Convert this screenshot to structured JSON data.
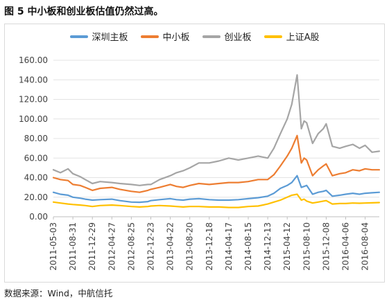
{
  "figure": {
    "title": "图 5  中小板和创业板估值仍然过高。",
    "source": "数据来源：Wind，中航信托"
  },
  "chart_data": {
    "type": "line",
    "title": "",
    "xlabel": "",
    "ylabel": "",
    "ylim": [
      0,
      160
    ],
    "yticks": [
      "0.00",
      "20.00",
      "40.00",
      "60.00",
      "80.00",
      "100.00",
      "120.00",
      "140.00",
      "160.00"
    ],
    "xtick_labels": [
      "2011-05-03",
      "2011-08-31",
      "2011-12-29",
      "2012-04-27",
      "2012-08-25",
      "2012-12-23",
      "2013-04-22",
      "2013-08-20",
      "2013-12-18",
      "2014-04-17",
      "2014-08-15",
      "2014-12-13",
      "2015-04-12",
      "2015-08-10",
      "2015-12-08",
      "2016-04-06",
      "2016-08-04"
    ],
    "grid": "horizontal",
    "legend_position": "top",
    "x": [
      "2011-05-03",
      "2011-06-15",
      "2011-08-01",
      "2011-08-31",
      "2011-10-15",
      "2011-11-15",
      "2011-12-29",
      "2012-02-15",
      "2012-04-27",
      "2012-06-15",
      "2012-08-25",
      "2012-10-15",
      "2012-12-05",
      "2012-12-23",
      "2013-02-15",
      "2013-04-22",
      "2013-05-30",
      "2013-07-10",
      "2013-08-20",
      "2013-10-15",
      "2013-12-18",
      "2014-02-15",
      "2014-04-17",
      "2014-06-15",
      "2014-08-15",
      "2014-10-15",
      "2014-12-13",
      "2015-01-20",
      "2015-03-01",
      "2015-04-12",
      "2015-05-10",
      "2015-06-12",
      "2015-07-08",
      "2015-07-25",
      "2015-08-10",
      "2015-09-15",
      "2015-10-20",
      "2015-11-20",
      "2015-12-08",
      "2016-01-15",
      "2016-02-29",
      "2016-04-06",
      "2016-05-20",
      "2016-06-30",
      "2016-08-04",
      "2016-09-15",
      "2016-10-30"
    ],
    "series": [
      {
        "name": "深圳主板",
        "color": "#5b9bd5",
        "values": [
          25,
          23,
          22,
          20,
          19,
          18,
          17,
          17.5,
          18,
          16.5,
          15,
          14.8,
          15.5,
          16.5,
          17.5,
          18.5,
          17.5,
          17,
          18,
          18.5,
          17.5,
          17,
          17,
          17.5,
          18.5,
          19.5,
          21,
          24,
          29,
          32,
          35,
          42,
          30,
          31,
          32,
          23,
          25,
          26,
          27,
          21,
          22,
          23,
          24,
          23,
          24,
          24.5,
          25
        ]
      },
      {
        "name": "中小板",
        "color": "#ed7d31",
        "values": [
          40,
          38,
          37,
          33,
          32,
          30,
          27,
          29,
          30,
          28,
          26,
          25,
          27,
          28,
          30,
          33,
          31,
          30,
          32,
          34,
          33,
          34,
          35,
          35,
          36,
          38,
          38,
          43,
          52,
          62,
          70,
          83,
          55,
          60,
          58,
          42,
          48,
          52,
          54,
          42,
          44,
          45,
          48,
          47,
          49,
          48,
          48
        ]
      },
      {
        "name": "创业板",
        "color": "#a5a5a5",
        "values": [
          48,
          45,
          49,
          44,
          41,
          38,
          34,
          36,
          35,
          34,
          33,
          32,
          33,
          33,
          38,
          42,
          45,
          47,
          50,
          55,
          55,
          57,
          60,
          58,
          60,
          62,
          60,
          70,
          85,
          100,
          115,
          145,
          90,
          98,
          96,
          75,
          85,
          90,
          95,
          72,
          70,
          72,
          74,
          70,
          73,
          66,
          67
        ]
      },
      {
        "name": "上证A股",
        "color": "#ffc000",
        "values": [
          15,
          14,
          13,
          12.5,
          12,
          11.5,
          10.5,
          11.5,
          12,
          11.5,
          10.5,
          10,
          10.5,
          11,
          11.5,
          11,
          10.5,
          10,
          10.5,
          10.5,
          10,
          10,
          9.5,
          9.5,
          10.5,
          11,
          13,
          15,
          17,
          20,
          22,
          23,
          17,
          18,
          16,
          14,
          15,
          16,
          16.5,
          13,
          13.5,
          13.5,
          14,
          13.8,
          14,
          14.2,
          14.5
        ]
      }
    ]
  }
}
